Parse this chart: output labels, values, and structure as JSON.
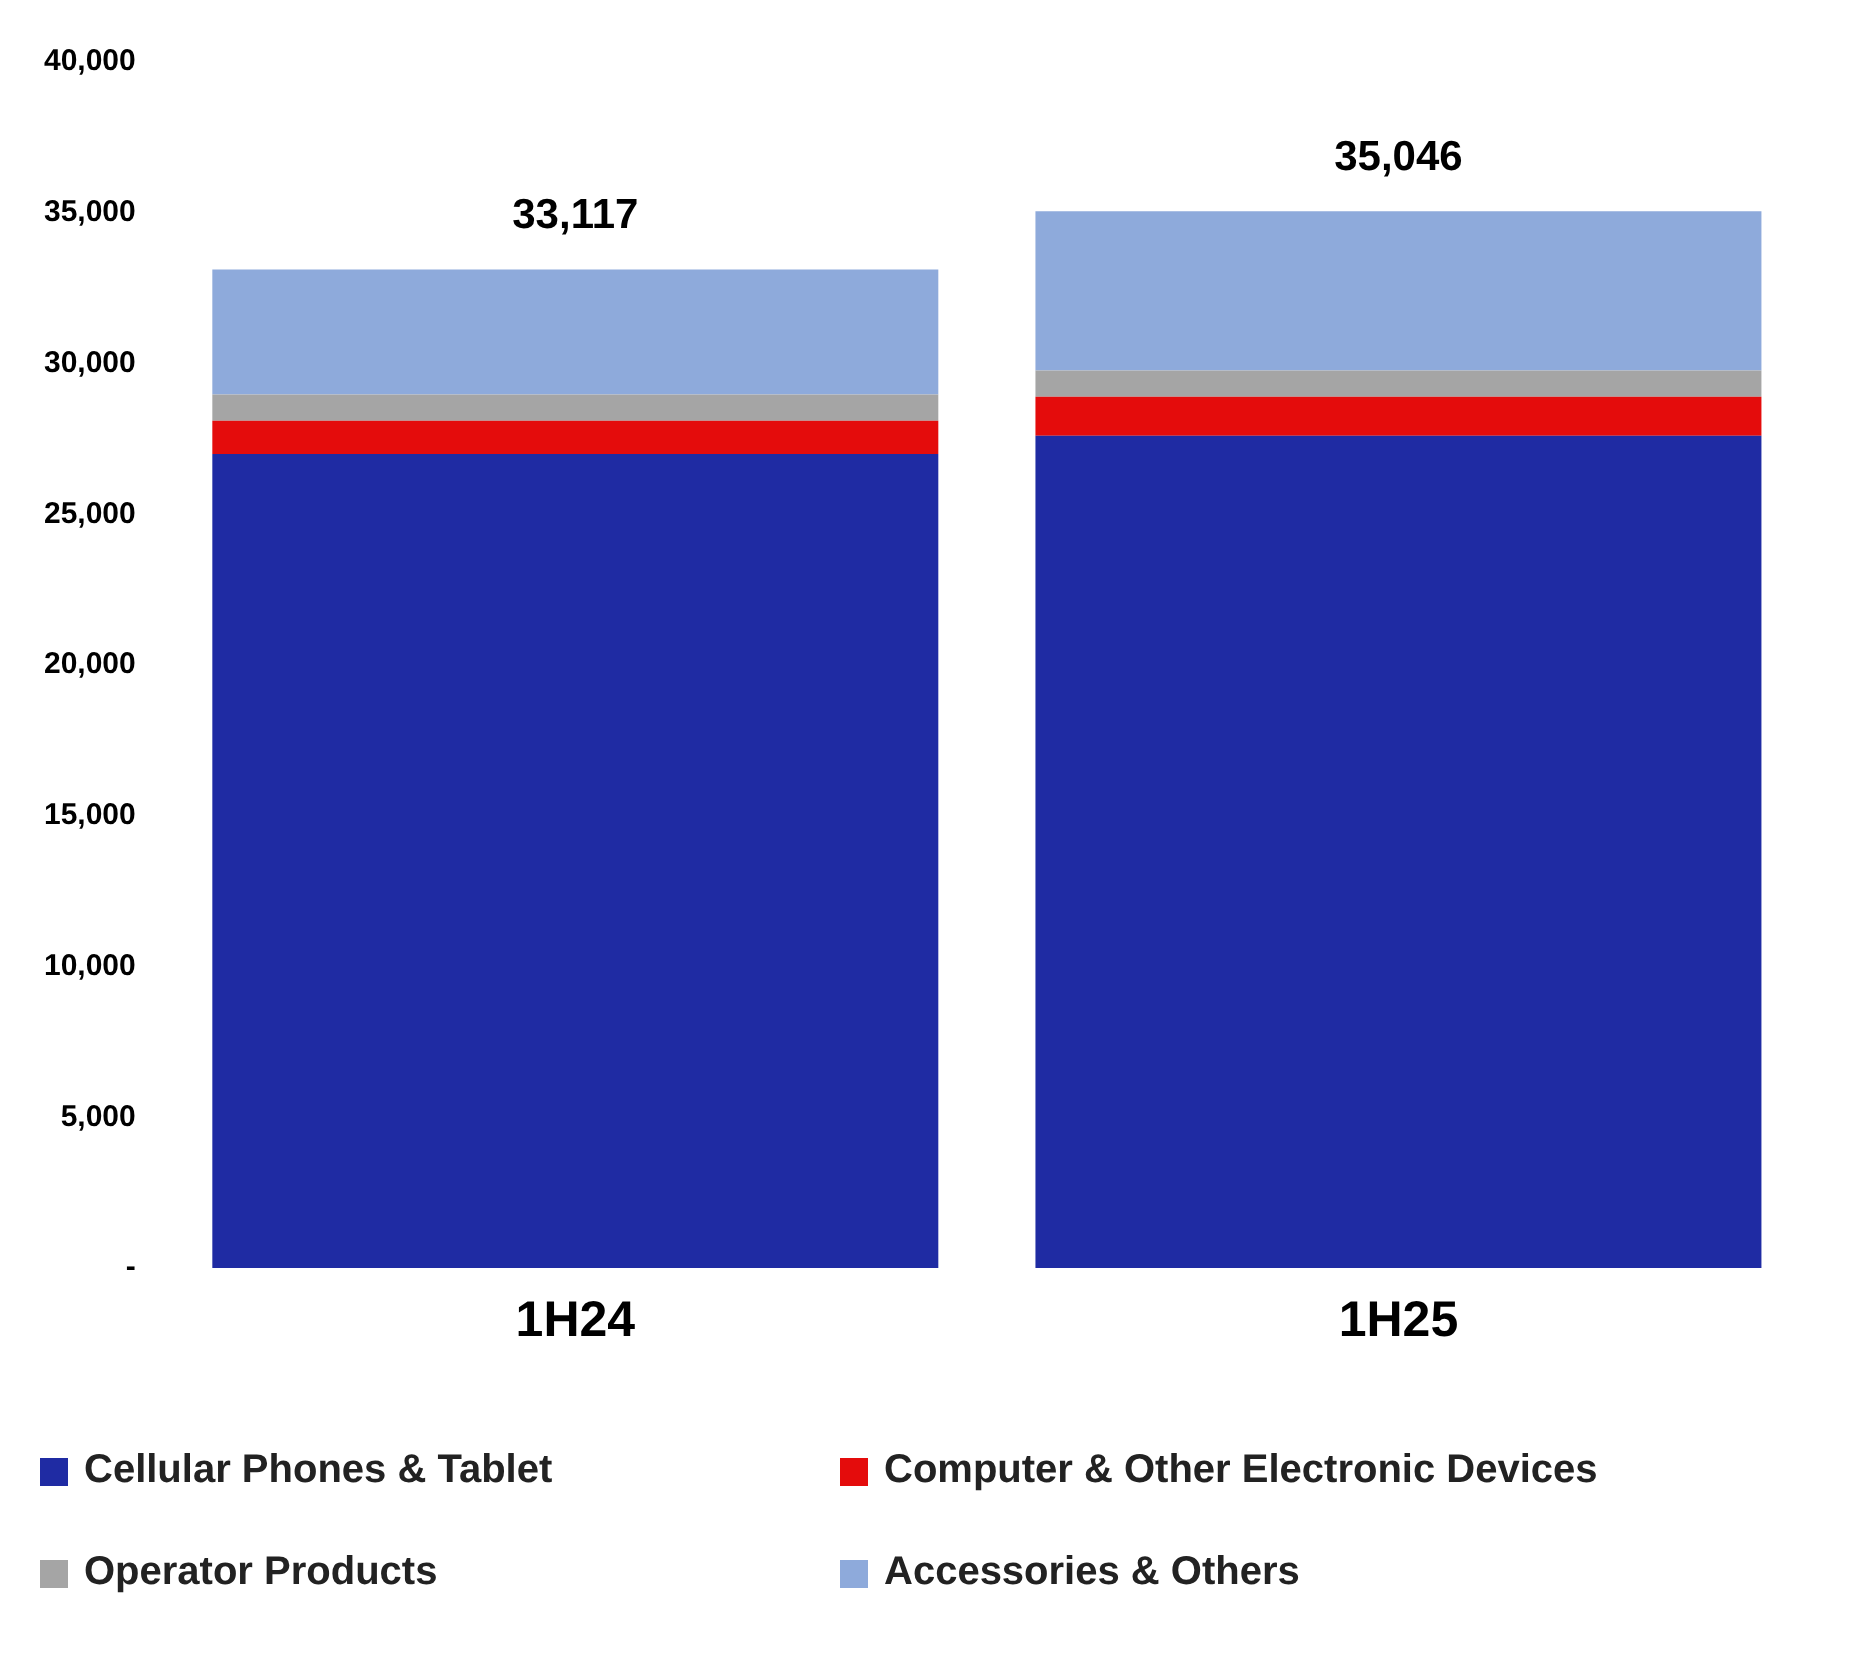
{
  "chart_data": {
    "type": "bar",
    "stacked": true,
    "categories": [
      "1H24",
      "1H25"
    ],
    "series": [
      {
        "name": "Cellular Phones & Tablet",
        "color": "#1f2ba3",
        "values": [
          27000,
          27600
        ]
      },
      {
        "name": "Computer & Other Electronic Devices",
        "color": "#e40c0c",
        "values": [
          1100,
          1300
        ]
      },
      {
        "name": "Operator Products",
        "color": "#a5a5a5",
        "values": [
          870,
          870
        ]
      },
      {
        "name": "Accessories & Others",
        "color": "#8eaadb",
        "values": [
          4147,
          5276
        ]
      }
    ],
    "totals": [
      "33,117",
      "35,046"
    ],
    "ylim": [
      0,
      40000
    ],
    "yticks": [
      {
        "value": 0,
        "label": "-"
      },
      {
        "value": 5000,
        "label": "5,000"
      },
      {
        "value": 10000,
        "label": "10,000"
      },
      {
        "value": 15000,
        "label": "15,000"
      },
      {
        "value": 20000,
        "label": "20,000"
      },
      {
        "value": 25000,
        "label": "25,000"
      },
      {
        "value": 30000,
        "label": "30,000"
      },
      {
        "value": 35000,
        "label": "35,000"
      },
      {
        "value": 40000,
        "label": "40,000"
      }
    ],
    "grid": false,
    "legend": "bottom"
  }
}
